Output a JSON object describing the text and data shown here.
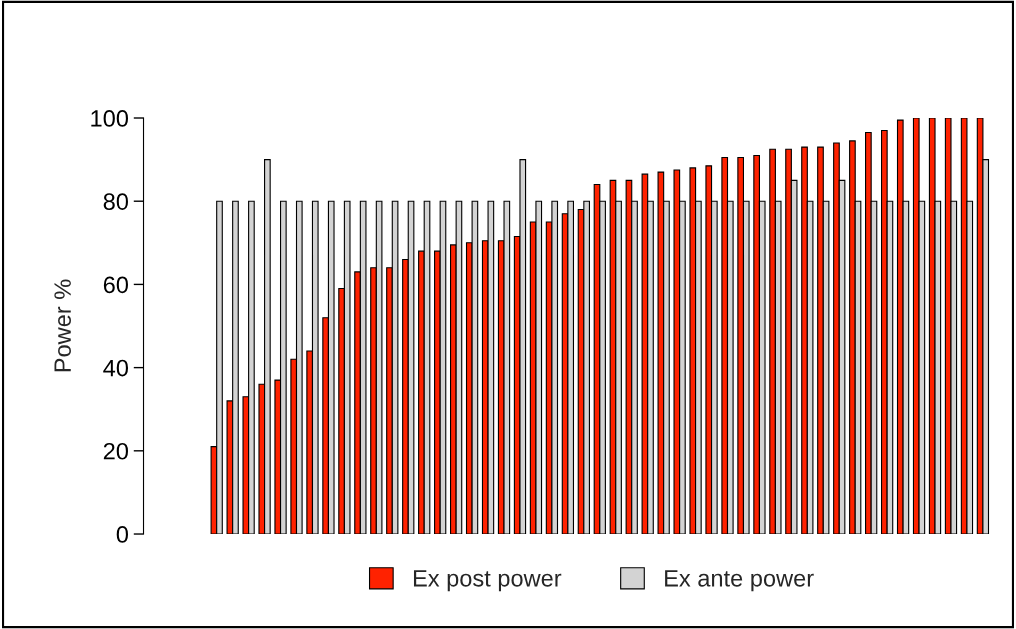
{
  "chart_data": {
    "type": "bar",
    "ylabel": "Power %",
    "categories": [
      null,
      null,
      null,
      null,
      null,
      null,
      null,
      null,
      null,
      null,
      null,
      null,
      null,
      null,
      null,
      null,
      null,
      null,
      null,
      null,
      null,
      null,
      null,
      null,
      null,
      null,
      null,
      null,
      null,
      null,
      null,
      null,
      null,
      null,
      null,
      null,
      null,
      null,
      null,
      null,
      null,
      null,
      null,
      null,
      null,
      null,
      null,
      null,
      null
    ],
    "series": [
      {
        "name": "Ex post power",
        "color": "#ff2200",
        "values": [
          21,
          32,
          33,
          36,
          37,
          42,
          44,
          52,
          59,
          63,
          64,
          64,
          66,
          68,
          68,
          69.5,
          70,
          70.5,
          70.5,
          71.5,
          75,
          75,
          77,
          78,
          84,
          85,
          85,
          86.5,
          87,
          87.5,
          88,
          88.5,
          90.5,
          90.5,
          91,
          92.5,
          92.5,
          93,
          93,
          94,
          94.5,
          96.5,
          97,
          99.5,
          100,
          100,
          100,
          100,
          100
        ]
      },
      {
        "name": "Ex ante power",
        "color": "#d3d3d3",
        "values": [
          80,
          80,
          80,
          90,
          80,
          80,
          80,
          80,
          80,
          80,
          80,
          80,
          80,
          80,
          80,
          80,
          80,
          80,
          80,
          90,
          80,
          80,
          80,
          80,
          80,
          80,
          80,
          80,
          80,
          80,
          80,
          80,
          80,
          80,
          80,
          80,
          85,
          80,
          80,
          85,
          80,
          80,
          80,
          80,
          80,
          80,
          80,
          80,
          90
        ]
      }
    ],
    "ylim": [
      0,
      100
    ],
    "yticks": [
      0,
      20,
      40,
      60,
      80,
      100
    ],
    "legend": "bottom"
  }
}
